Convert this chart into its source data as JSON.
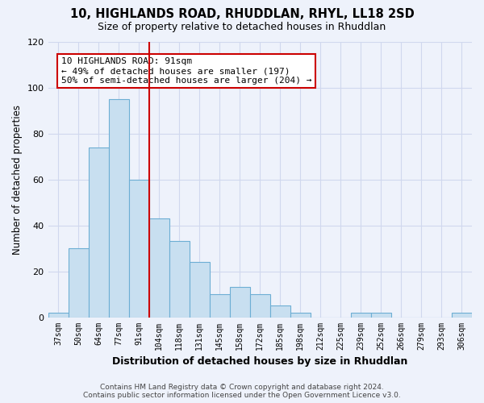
{
  "title": "10, HIGHLANDS ROAD, RHUDDLAN, RHYL, LL18 2SD",
  "subtitle": "Size of property relative to detached houses in Rhuddlan",
  "xlabel": "Distribution of detached houses by size in Rhuddlan",
  "ylabel": "Number of detached properties",
  "categories": [
    "37sqm",
    "50sqm",
    "64sqm",
    "77sqm",
    "91sqm",
    "104sqm",
    "118sqm",
    "131sqm",
    "145sqm",
    "158sqm",
    "172sqm",
    "185sqm",
    "198sqm",
    "212sqm",
    "225sqm",
    "239sqm",
    "252sqm",
    "266sqm",
    "279sqm",
    "293sqm",
    "306sqm"
  ],
  "values": [
    2,
    30,
    74,
    95,
    60,
    43,
    33,
    24,
    10,
    13,
    10,
    5,
    2,
    0,
    0,
    2,
    2,
    0,
    0,
    0,
    2
  ],
  "bar_color": "#c8dff0",
  "bar_edge_color": "#6daed4",
  "vline_color": "#cc0000",
  "vline_bar_index": 4,
  "ylim": [
    0,
    120
  ],
  "yticks": [
    0,
    20,
    40,
    60,
    80,
    100,
    120
  ],
  "annotation_text_line1": "10 HIGHLANDS ROAD: 91sqm",
  "annotation_text_line2": "← 49% of detached houses are smaller (197)",
  "annotation_text_line3": "50% of semi-detached houses are larger (204) →",
  "footer_line1": "Contains HM Land Registry data © Crown copyright and database right 2024.",
  "footer_line2": "Contains public sector information licensed under the Open Government Licence v3.0.",
  "background_color": "#eef2fb",
  "grid_color": "#d0d8ee",
  "ann_box_facecolor": "#ffffff",
  "ann_box_edgecolor": "#cc0000"
}
